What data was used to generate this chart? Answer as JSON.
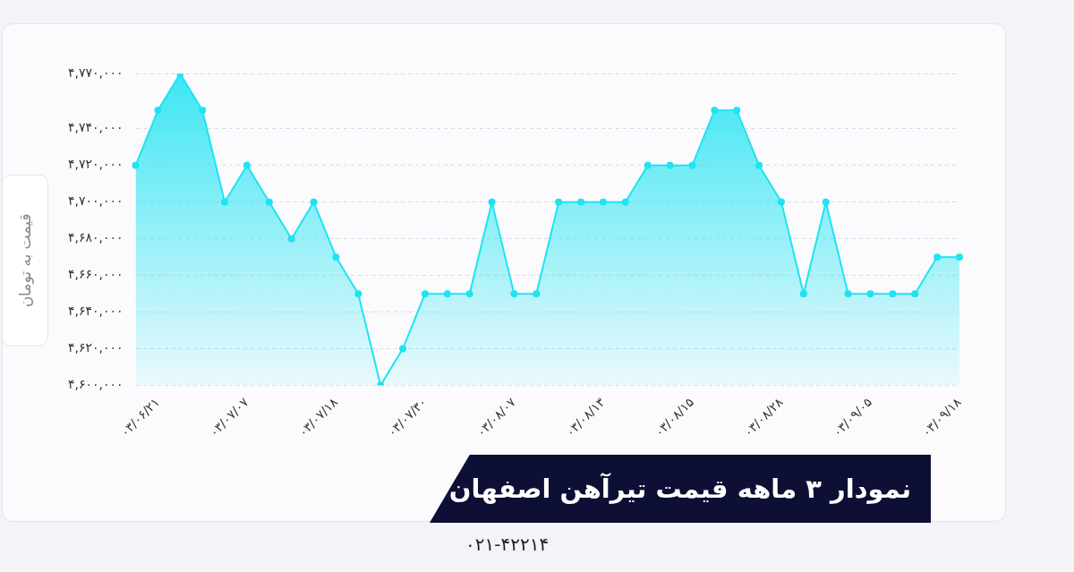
{
  "chart_data": {
    "type": "area",
    "title": "نمودار ۳ ماهه قیمت تیرآهن اصفهان",
    "ylabel": "قیمت به تومان",
    "annotations": [
      "۰۲۱-۴۲۲۱۴"
    ],
    "categories": [
      null,
      "۰۳/۰۶/۲۱",
      null,
      null,
      null,
      "۰۳/۰۷/۰۷",
      null,
      null,
      null,
      "۰۳/۰۷/۱۸",
      null,
      null,
      null,
      "۰۳/۰۷/۳۰",
      null,
      null,
      null,
      "۰۳/۰۸/۰۷",
      null,
      null,
      null,
      "۰۳/۰۸/۱۳",
      null,
      null,
      null,
      "۰۳/۰۸/۱۵",
      null,
      null,
      null,
      "۰۳/۰۸/۲۸",
      null,
      null,
      null,
      "۰۳/۰۹/۰۵",
      null,
      null,
      null,
      "۰۳/۰۹/۱۸"
    ],
    "series": [
      {
        "color": "#1fe3f2",
        "values": [
          4720000,
          4750000,
          4770000,
          4750000,
          4700000,
          4720000,
          4700000,
          4680000,
          4700000,
          4670000,
          4650000,
          4600000,
          4620000,
          4650000,
          4650000,
          4650000,
          4700000,
          4650000,
          4650000,
          4700000,
          4700000,
          4700000,
          4700000,
          4720000,
          4720000,
          4720000,
          4750000,
          4750000,
          4720000,
          4700000,
          4650000,
          4700000,
          4650000,
          4650000,
          4650000,
          4650000,
          4670000,
          4670000
        ]
      }
    ],
    "ylim": [
      4600000,
      4770000
    ],
    "yticks": [
      {
        "value": 4600000,
        "label": "۴,۶۰۰,۰۰۰"
      },
      {
        "value": 4620000,
        "label": "۴,۶۲۰,۰۰۰"
      },
      {
        "value": 4640000,
        "label": "۴,۶۴۰,۰۰۰"
      },
      {
        "value": 4660000,
        "label": "۴,۶۶۰,۰۰۰"
      },
      {
        "value": 4680000,
        "label": "۴,۶۸۰,۰۰۰"
      },
      {
        "value": 4700000,
        "label": "۴,۷۰۰,۰۰۰"
      },
      {
        "value": 4720000,
        "label": "۴,۷۲۰,۰۰۰"
      },
      {
        "value": 4740000,
        "label": "۴,۷۴۰,۰۰۰"
      },
      {
        "value": 4770000,
        "label": "۴,۷۷۰,۰۰۰"
      }
    ],
    "grid": "y",
    "marker": "circle",
    "line_style": "solid",
    "legend": false
  }
}
